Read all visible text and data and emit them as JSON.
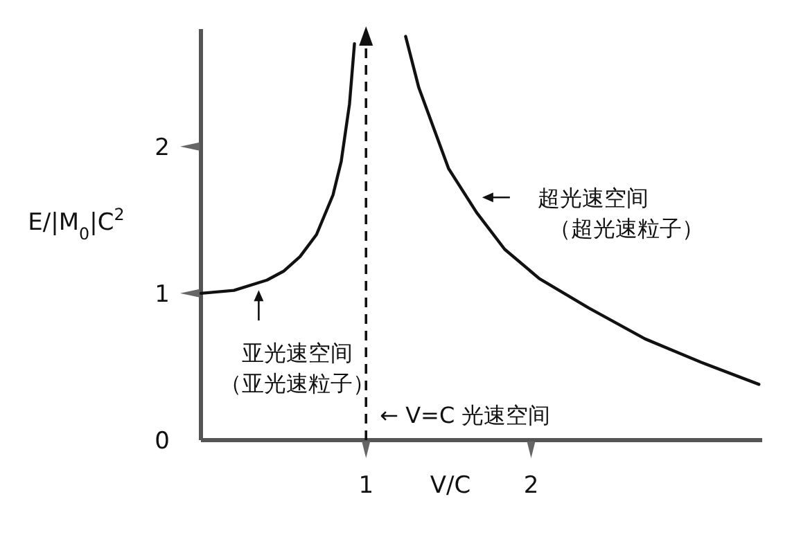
{
  "chart_data": {
    "type": "line",
    "xlabel": "V/C",
    "ylabel": "E/|M$_{0}$|C$^{2}$",
    "xlim": [
      0,
      3.4
    ],
    "ylim": [
      0,
      2.8
    ],
    "xticks": [
      1,
      2
    ],
    "yticks": [
      0,
      1,
      2
    ],
    "grid": false,
    "marker": "none",
    "line_style": "solid",
    "series": [
      {
        "color": "#111111",
        "x": [
          0,
          0.2,
          0.4,
          0.5,
          0.6,
          0.7,
          0.8,
          0.85,
          0.9,
          0.93
        ],
        "values": [
          1.0,
          1.02,
          1.09,
          1.15,
          1.25,
          1.4,
          1.67,
          1.9,
          2.29,
          2.7
        ]
      },
      {
        "color": "#111111",
        "x": [
          1.24,
          1.32,
          1.5,
          1.67,
          1.84,
          2.05,
          2.35,
          2.69,
          3.03,
          3.38
        ],
        "values": [
          2.75,
          2.4,
          1.85,
          1.55,
          1.3,
          1.1,
          0.9,
          0.69,
          0.53,
          0.38
        ]
      }
    ],
    "ref_lines": [
      {
        "axis": "x",
        "value": 1,
        "label": "← V=C 光速空间",
        "line_style": "dashed",
        "color": "#111111"
      }
    ],
    "annotations": [
      {
        "text": "亚光速空间（亚光速粒子）",
        "x": 0.35,
        "y": 1.06
      },
      {
        "text": "超光速空间（超光速粒子）",
        "x": 1.67,
        "y": 1.55
      }
    ]
  }
}
